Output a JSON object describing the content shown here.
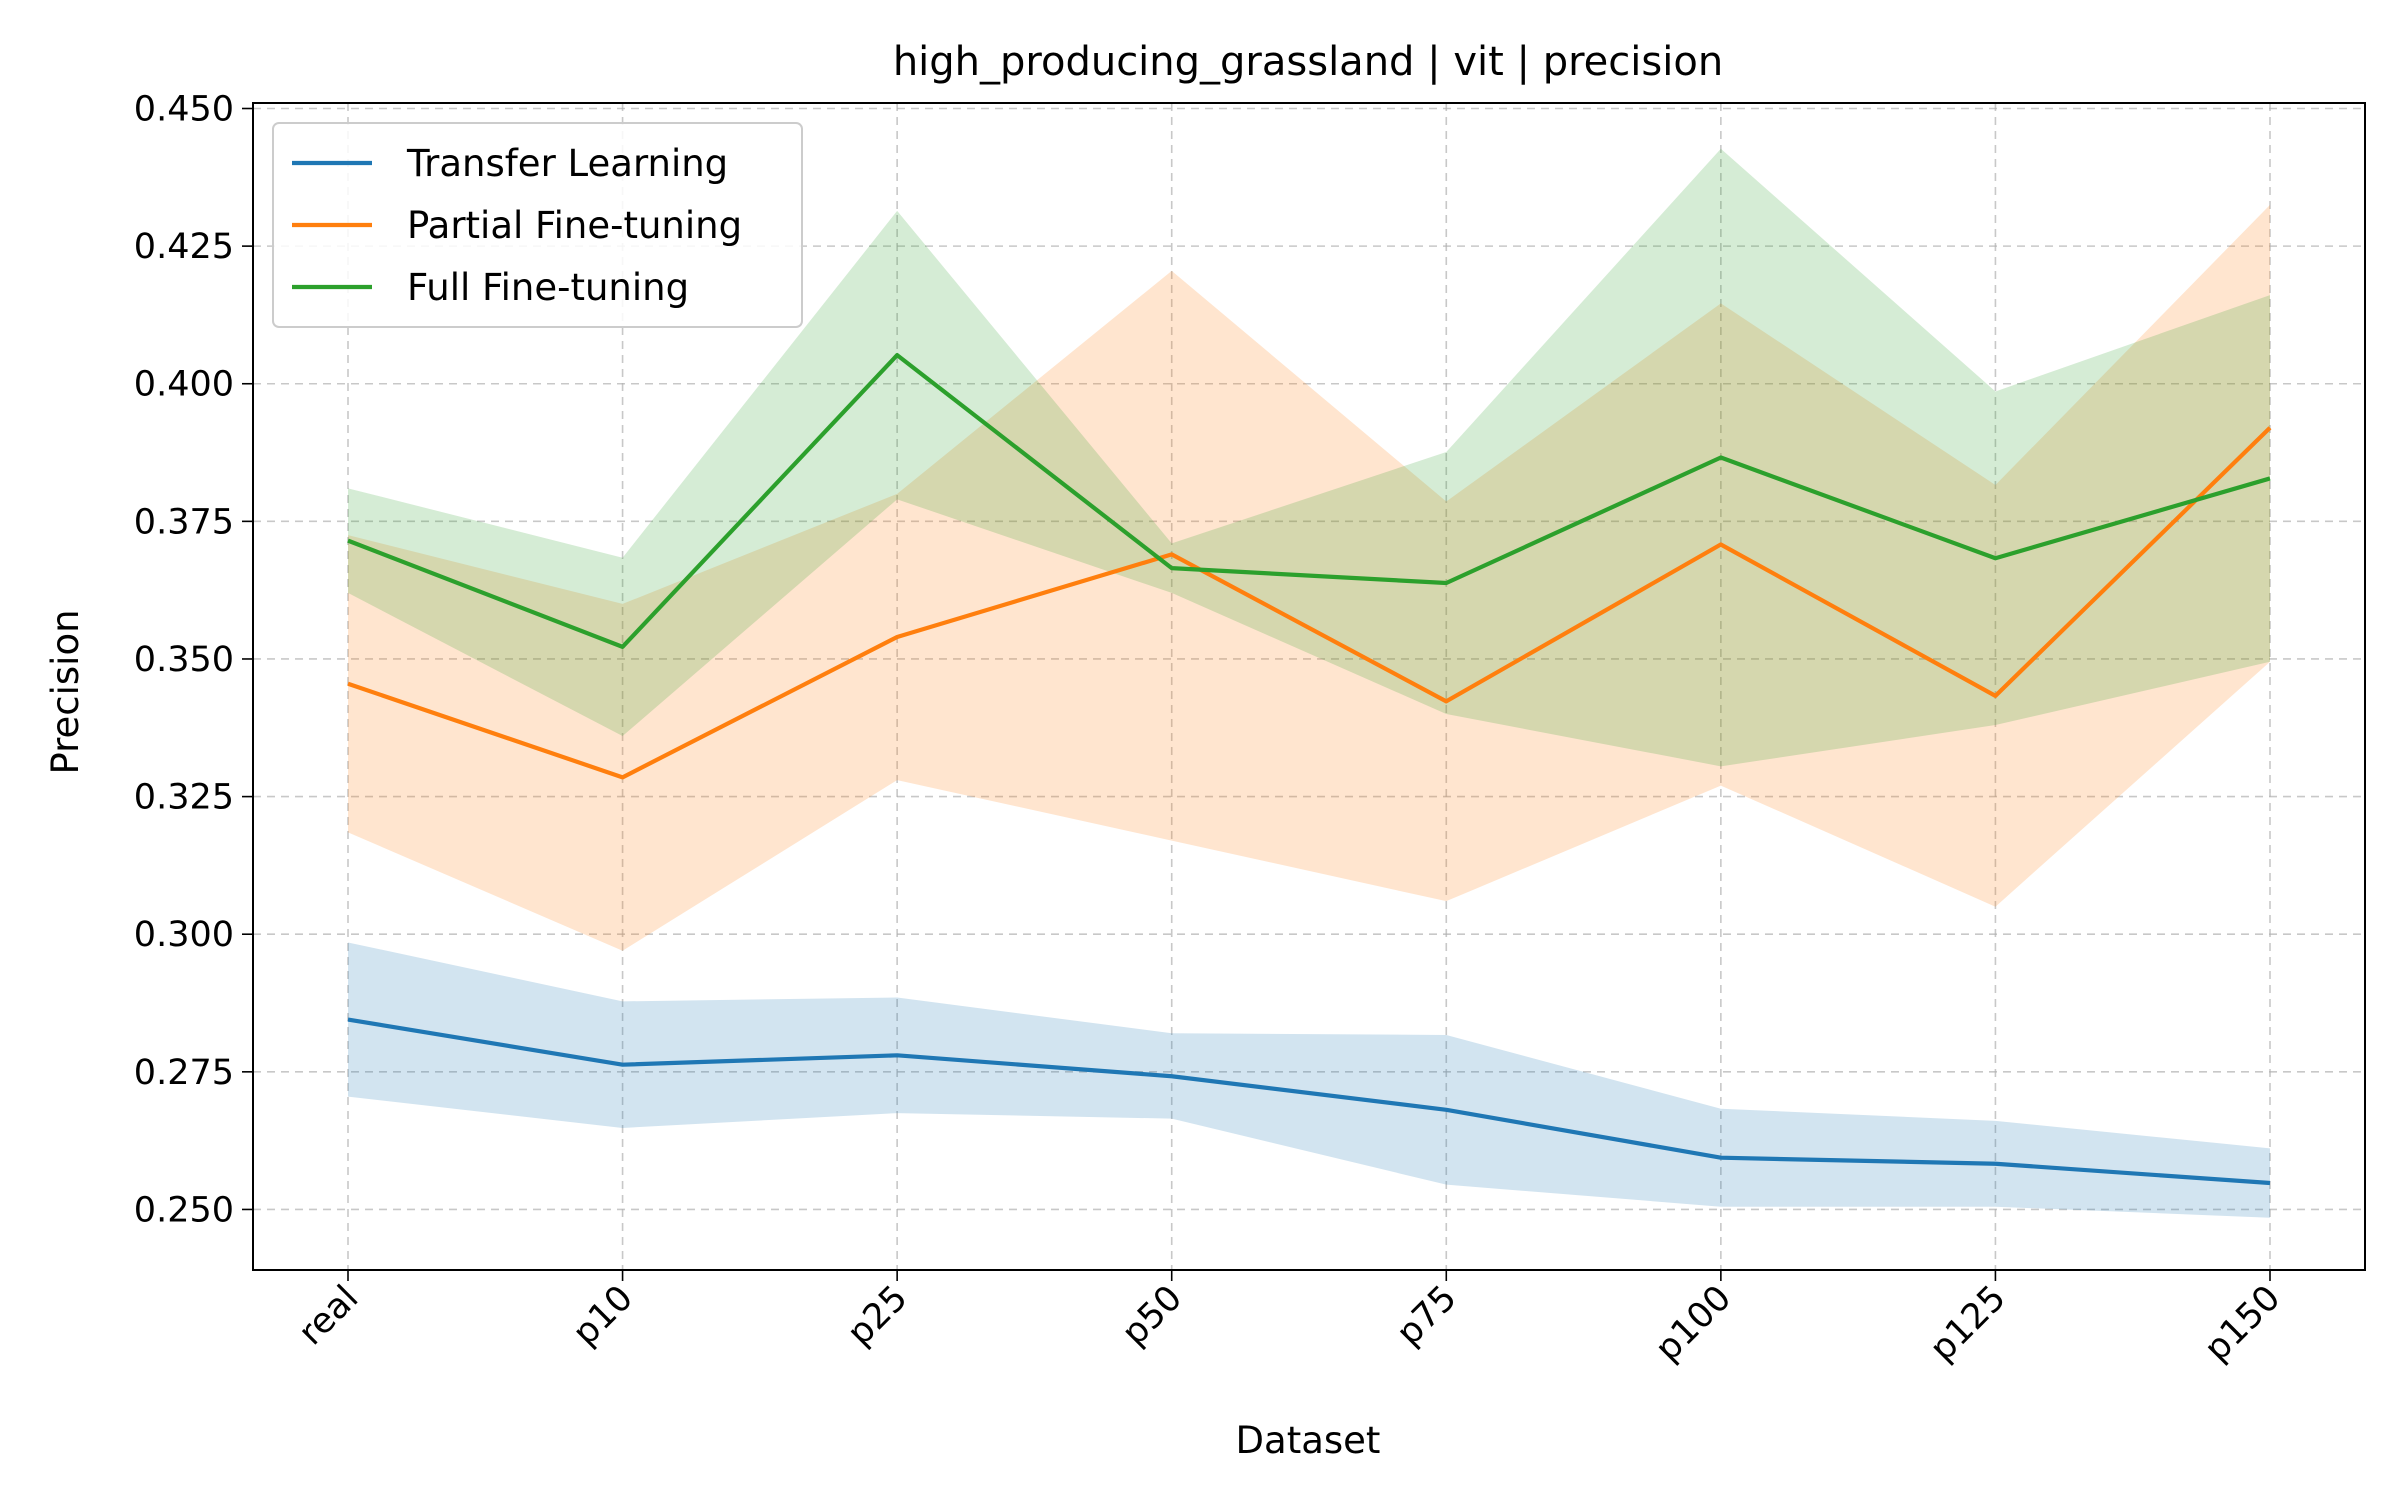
{
  "chart_data": {
    "type": "line",
    "title": "high_producing_grassland | vit | precision",
    "xlabel": "Dataset",
    "ylabel": "Precision",
    "categories": [
      "real",
      "p10",
      "p25",
      "p50",
      "p75",
      "p100",
      "p125",
      "p150"
    ],
    "ylim": [
      0.239,
      0.451
    ],
    "yticks": [
      0.25,
      0.275,
      0.3,
      0.325,
      0.35,
      0.375,
      0.4,
      0.425,
      0.45
    ],
    "ytick_labels": [
      "0.250",
      "0.275",
      "0.300",
      "0.325",
      "0.350",
      "0.375",
      "0.400",
      "0.425",
      "0.450"
    ],
    "grid": true,
    "legend_position": "top-left",
    "series": [
      {
        "name": "Transfer Learning",
        "color": "#1f77b4",
        "values": [
          0.2845,
          0.2763,
          0.278,
          0.2742,
          0.2681,
          0.2594,
          0.2583,
          0.2548
        ],
        "lower": [
          0.2705,
          0.2648,
          0.2675,
          0.2665,
          0.2545,
          0.2505,
          0.2505,
          0.2485
        ],
        "upper": [
          0.2985,
          0.2878,
          0.2885,
          0.282,
          0.2817,
          0.2683,
          0.2661,
          0.2611
        ]
      },
      {
        "name": "Partial Fine-tuning",
        "color": "#ff7f0e",
        "values": [
          0.3455,
          0.3285,
          0.354,
          0.369,
          0.3423,
          0.3708,
          0.3433,
          0.392
        ],
        "lower": [
          0.3185,
          0.297,
          0.328,
          0.317,
          0.306,
          0.327,
          0.305,
          0.3495
        ],
        "upper": [
          0.3725,
          0.36,
          0.38,
          0.4205,
          0.3786,
          0.4146,
          0.3816,
          0.4325
        ]
      },
      {
        "name": "Full Fine-tuning",
        "color": "#2ca02c",
        "values": [
          0.3715,
          0.3522,
          0.4052,
          0.3665,
          0.3638,
          0.3866,
          0.3683,
          0.3828
        ],
        "lower": [
          0.362,
          0.336,
          0.379,
          0.362,
          0.34,
          0.3305,
          0.338,
          0.3495
        ],
        "upper": [
          0.381,
          0.3684,
          0.4314,
          0.371,
          0.3876,
          0.4427,
          0.3986,
          0.4161
        ]
      }
    ]
  }
}
